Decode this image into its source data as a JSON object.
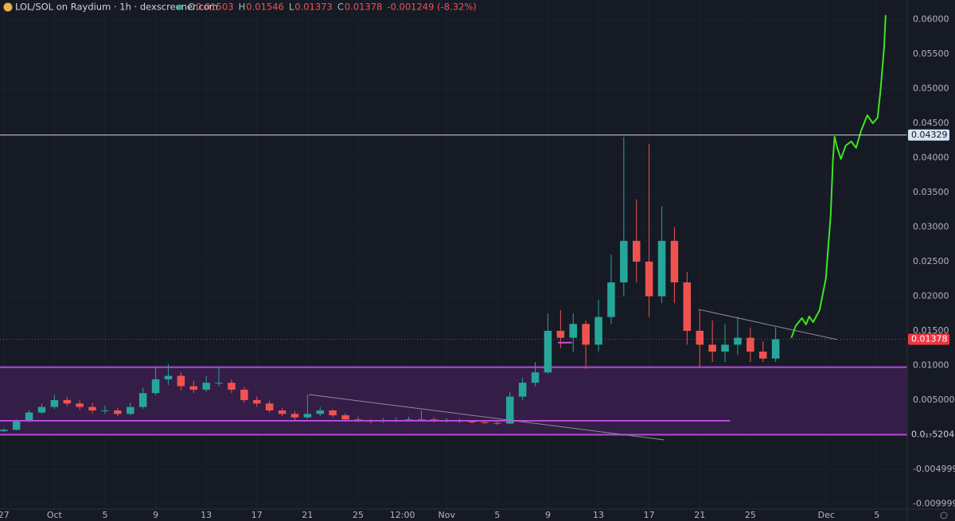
{
  "chart_data": {
    "type": "candlestick",
    "title": "LOL/SOL on Raydium · 1h · dexscreener.com",
    "ohlc_header": [
      {
        "label": "O",
        "value": 0.01503
      },
      {
        "label": "H",
        "value": 0.01546
      },
      {
        "label": "L",
        "value": 0.01373
      },
      {
        "label": "C",
        "value": 0.01378
      }
    ],
    "change_text": "-0.001249 (-8.32%)",
    "up_color": "#26a69a",
    "down_color": "#ef5350",
    "grid": true,
    "xlim": [
      -0.3,
      71.4
    ],
    "ylim": [
      -0.01075,
      0.0628
    ],
    "xticks": [
      {
        "value": 0,
        "label": "27"
      },
      {
        "value": 4,
        "label": "Oct"
      },
      {
        "value": 8,
        "label": "5"
      },
      {
        "value": 12,
        "label": "9"
      },
      {
        "value": 16,
        "label": "13"
      },
      {
        "value": 20,
        "label": "17"
      },
      {
        "value": 24,
        "label": "21"
      },
      {
        "value": 28,
        "label": "25"
      },
      {
        "value": 31.5,
        "label": "12:00"
      },
      {
        "value": 35,
        "label": "Nov"
      },
      {
        "value": 39,
        "label": "5"
      },
      {
        "value": 43,
        "label": "9"
      },
      {
        "value": 47,
        "label": "13"
      },
      {
        "value": 51,
        "label": "17"
      },
      {
        "value": 55,
        "label": "21"
      },
      {
        "value": 59,
        "label": "25"
      },
      {
        "value": 65,
        "label": "Dec"
      },
      {
        "value": 69,
        "label": "5"
      }
    ],
    "yticks": [
      {
        "value": 0.06,
        "label": "0.06000"
      },
      {
        "value": 0.055,
        "label": "0.05500"
      },
      {
        "value": 0.05,
        "label": "0.05000"
      },
      {
        "value": 0.045,
        "label": "0.04500"
      },
      {
        "value": 0.04,
        "label": "0.04000"
      },
      {
        "value": 0.035,
        "label": "0.03500"
      },
      {
        "value": 0.03,
        "label": "0.03000"
      },
      {
        "value": 0.025,
        "label": "0.02500"
      },
      {
        "value": 0.02,
        "label": "0.02000"
      },
      {
        "value": 0.015,
        "label": "0.01500"
      },
      {
        "value": 0.01,
        "label": "0.01000"
      },
      {
        "value": 0.005,
        "label": "0.005000"
      },
      -0.004999,
      -0.009999
    ],
    "x": [
      0,
      1,
      2,
      3,
      4,
      5,
      6,
      7,
      8,
      9,
      10,
      11,
      12,
      13,
      14,
      15,
      16,
      17,
      18,
      19,
      20,
      21,
      22,
      23,
      24,
      25,
      26,
      27,
      28,
      29,
      30,
      31,
      32,
      33,
      34,
      35,
      36,
      37,
      38,
      39,
      40,
      41,
      42,
      43,
      44,
      45,
      46,
      47,
      48,
      49,
      50,
      51,
      52,
      53,
      54,
      55,
      56,
      57,
      58,
      59,
      60,
      61
    ],
    "open": [
      0.0005,
      0.0007,
      0.002,
      0.0032,
      0.004,
      0.005,
      0.0045,
      0.004,
      0.0035,
      0.0035,
      0.003,
      0.004,
      0.006,
      0.008,
      0.0085,
      0.007,
      0.0065,
      0.0075,
      0.0075,
      0.0065,
      0.005,
      0.0045,
      0.0035,
      0.003,
      0.0025,
      0.003,
      0.0035,
      0.0028,
      0.0022,
      0.002,
      0.0019,
      0.002,
      0.0021,
      0.0022,
      0.0022,
      0.002,
      0.0021,
      0.0019,
      0.0018,
      0.0017,
      0.0016,
      0.0055,
      0.0075,
      0.009,
      0.015,
      0.014,
      0.016,
      0.013,
      0.017,
      0.022,
      0.028,
      0.025,
      0.02,
      0.028,
      0.022,
      0.015,
      0.013,
      0.012,
      0.013,
      0.014,
      0.012,
      0.011
    ],
    "high": [
      0.0009,
      0.0022,
      0.0036,
      0.0045,
      0.0058,
      0.0055,
      0.005,
      0.0046,
      0.0042,
      0.0039,
      0.0046,
      0.0068,
      0.0098,
      0.0102,
      0.009,
      0.0078,
      0.0085,
      0.0097,
      0.008,
      0.0069,
      0.0055,
      0.0049,
      0.0039,
      0.0034,
      0.0058,
      0.004,
      0.0037,
      0.0031,
      0.0026,
      0.0023,
      0.0024,
      0.0025,
      0.0026,
      0.0035,
      0.0025,
      0.0024,
      0.0023,
      0.0021,
      0.002,
      0.0019,
      0.0062,
      0.0082,
      0.0105,
      0.0175,
      0.018,
      0.0175,
      0.0165,
      0.0195,
      0.026,
      0.043,
      0.034,
      0.042,
      0.033,
      0.03,
      0.0235,
      0.018,
      0.0165,
      0.016,
      0.017,
      0.0155,
      0.0135,
      0.0155
    ],
    "low": [
      0.0004,
      0.0006,
      0.0018,
      0.003,
      0.0037,
      0.0041,
      0.0036,
      0.0031,
      0.003,
      0.0027,
      0.0028,
      0.0037,
      0.0057,
      0.0072,
      0.0064,
      0.006,
      0.0062,
      0.007,
      0.006,
      0.0046,
      0.004,
      0.0032,
      0.0027,
      0.0021,
      0.0023,
      0.0027,
      0.0025,
      0.002,
      0.0018,
      0.0017,
      0.0017,
      0.0018,
      0.0019,
      0.002,
      0.0018,
      0.0018,
      0.0017,
      0.0016,
      0.0015,
      0.0014,
      0.0015,
      0.005,
      0.007,
      0.0088,
      0.0125,
      0.012,
      0.0095,
      0.012,
      0.016,
      0.02,
      0.022,
      0.017,
      0.019,
      0.019,
      0.013,
      0.0098,
      0.0105,
      0.0105,
      0.0115,
      0.0105,
      0.0105,
      0.0105
    ],
    "close": [
      0.0007,
      0.002,
      0.0032,
      0.004,
      0.005,
      0.0045,
      0.004,
      0.0035,
      0.0035,
      0.003,
      0.004,
      0.006,
      0.008,
      0.0085,
      0.007,
      0.0065,
      0.0075,
      0.0075,
      0.0065,
      0.005,
      0.0045,
      0.0035,
      0.003,
      0.0025,
      0.003,
      0.0035,
      0.0028,
      0.0022,
      0.002,
      0.0019,
      0.002,
      0.0021,
      0.0022,
      0.0022,
      0.002,
      0.0021,
      0.0019,
      0.0018,
      0.0017,
      0.0016,
      0.0055,
      0.0075,
      0.009,
      0.015,
      0.014,
      0.016,
      0.013,
      0.017,
      0.022,
      0.028,
      0.025,
      0.02,
      0.028,
      0.022,
      0.015,
      0.013,
      0.012,
      0.013,
      0.014,
      0.012,
      0.011,
      0.01378
    ],
    "zone": {
      "top": 0.00975,
      "bottom": 5.204e-18,
      "fill": "#3a1e4d",
      "color": "#b44ad6"
    },
    "price_lines": [
      {
        "value": 0.04329,
        "color": "#d1d4dc",
        "tag_color": "#d6e4f5",
        "tag_text": "#131722"
      },
      {
        "value": 0.01378,
        "color": "#ef5350",
        "tag_color": "#f23645",
        "tag_text": "#ffffff",
        "dashed": true
      },
      {
        "value": 5.204e-18,
        "label": "0.0₁₇5204",
        "color": "#b44ad6",
        "tag_color": "#161a25",
        "tag_text": "#d1d4dc"
      }
    ],
    "segments": [
      {
        "x": [
          -0.3,
          57.4
        ],
        "y": [
          0.002,
          0.002
        ],
        "color": "#b44ad6",
        "width": 2
      },
      {
        "x": [
          24.1,
          52.2
        ],
        "y": [
          0.0058,
          -0.00075
        ],
        "color": "#8a8d96",
        "width": 1
      },
      {
        "x": [
          54.9,
          65.85
        ],
        "y": [
          0.0181,
          0.01374
        ],
        "color": "#8a8d96",
        "width": 1
      },
      {
        "x": [
          43.8,
          44.9
        ],
        "y": [
          0.0133,
          0.0133
        ],
        "color": "#d64ad6",
        "width": 2
      }
    ],
    "projection": {
      "color": "#3ee51e",
      "x": [
        62.26,
        62.58,
        63.08,
        63.4,
        63.65,
        63.96,
        64.47,
        64.97,
        65.35,
        65.53,
        65.66,
        65.85,
        66.16,
        66.54,
        66.98,
        67.36,
        67.74,
        68.24,
        68.68,
        69.06,
        69.31,
        69.57,
        69.69
      ],
      "y": [
        0.01408,
        0.01569,
        0.01684,
        0.01592,
        0.01707,
        0.01626,
        0.01799,
        0.02259,
        0.03178,
        0.03983,
        0.04305,
        0.04155,
        0.03983,
        0.04178,
        0.04236,
        0.04144,
        0.04385,
        0.04615,
        0.045,
        0.0458,
        0.05017,
        0.05592,
        0.06052
      ]
    }
  }
}
